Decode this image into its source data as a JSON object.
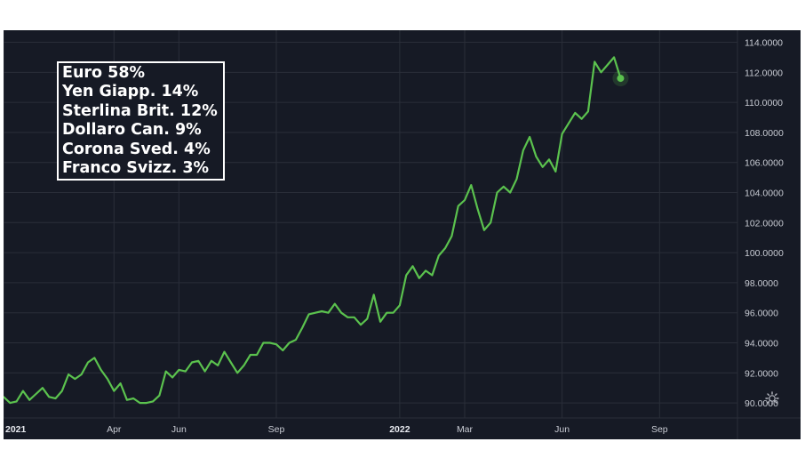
{
  "legend": {
    "items": [
      "Euro 58%",
      "Yen Giapp. 14%",
      "Sterlina Brit. 12%",
      "Dollaro Can. 9%",
      "Corona Sved. 4%",
      "Franco Svizz. 3%"
    ]
  },
  "icons": {
    "settings": "gear-icon"
  },
  "colors": {
    "background": "#161a25",
    "line": "#5bc24e",
    "grid": "#2a2e39",
    "text": "#c9ccd4"
  },
  "chart_data": {
    "type": "line",
    "title": "",
    "xlabel": "",
    "ylabel": "",
    "ylim": [
      89.0,
      114.8
    ],
    "xlim": [
      0,
      113
    ],
    "y_ticks": [
      "114.0000",
      "112.0000",
      "110.0000",
      "108.0000",
      "106.0000",
      "104.0000",
      "102.0000",
      "100.0000",
      "98.0000",
      "96.0000",
      "94.0000",
      "92.0000",
      "90.0000"
    ],
    "x_ticks": [
      {
        "label": "2021",
        "x": 0,
        "bold": true
      },
      {
        "label": "Apr",
        "x": 17,
        "bold": false
      },
      {
        "label": "Jun",
        "x": 27,
        "bold": false
      },
      {
        "label": "Sep",
        "x": 42,
        "bold": false
      },
      {
        "label": "2022",
        "x": 61,
        "bold": true
      },
      {
        "label": "Mar",
        "x": 71,
        "bold": false
      },
      {
        "label": "Jun",
        "x": 86,
        "bold": false
      },
      {
        "label": "Sep",
        "x": 101,
        "bold": false
      }
    ],
    "grid": true,
    "series": [
      {
        "values": [
          90.4,
          90.0,
          90.1,
          90.8,
          90.2,
          90.6,
          91.0,
          90.4,
          90.3,
          90.8,
          91.9,
          91.6,
          91.9,
          92.7,
          93.0,
          92.2,
          91.6,
          90.8,
          91.3,
          90.2,
          90.3,
          90.0,
          90.0,
          90.1,
          90.5,
          92.1,
          91.7,
          92.2,
          92.1,
          92.7,
          92.8,
          92.1,
          92.8,
          92.5,
          93.4,
          92.7,
          92.0,
          92.5,
          93.2,
          93.2,
          94.0,
          94.0,
          93.9,
          93.5,
          94.0,
          94.2,
          95.0,
          95.9,
          96.0,
          96.1,
          96.0,
          96.6,
          96.0,
          95.7,
          95.7,
          95.2,
          95.6,
          97.2,
          95.4,
          96.0,
          96.0,
          96.5,
          98.5,
          99.1,
          98.3,
          98.8,
          98.5,
          99.8,
          100.3,
          101.1,
          103.1,
          103.5,
          104.5,
          102.9,
          101.5,
          102.0,
          104.0,
          104.4,
          104.0,
          104.9,
          106.8,
          107.7,
          106.4,
          105.7,
          106.2,
          105.4,
          107.9,
          108.6,
          109.3,
          108.9,
          109.4,
          112.7,
          112.0,
          112.5,
          113.0,
          111.6
        ],
        "color": "#5bc24e"
      }
    ],
    "last_point_marker": true
  }
}
